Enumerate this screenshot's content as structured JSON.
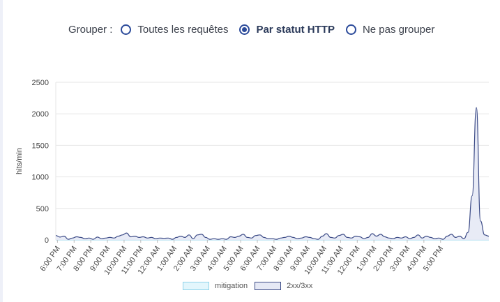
{
  "grouping": {
    "label": "Grouper :",
    "options": [
      {
        "label": "Toutes les requêtes",
        "selected": false
      },
      {
        "label": "Par statut HTTP",
        "selected": true
      },
      {
        "label": "Ne pas grouper",
        "selected": false
      }
    ],
    "accent_color": "#2b4a9a"
  },
  "legend": {
    "items": [
      {
        "label": "mitigation",
        "fill": "#e3f6fc",
        "stroke": "#8fd3ea"
      },
      {
        "label": "2xx/3xx",
        "fill": "#e6e9f5",
        "stroke": "#3b4a86"
      }
    ]
  },
  "chart_data": {
    "type": "area",
    "ylabel": "hits/min",
    "xlabel": "",
    "ylim": [
      0,
      2500
    ],
    "yticks": [
      0,
      500,
      1000,
      1500,
      2000,
      2500
    ],
    "grid": true,
    "legend_placement": "bottom",
    "xticks": [
      "6:00 PM",
      "7:00 PM",
      "8:00 PM",
      "9:00 PM",
      "10:00 PM",
      "11:00 PM",
      "12:00 AM",
      "1:00 AM",
      "2:00 AM",
      "3:00 AM",
      "4:00 AM",
      "5:00 AM",
      "6:00 AM",
      "7:00 AM",
      "8:00 AM",
      "9:00 AM",
      "10:00 AM",
      "11:00 AM",
      "12:00 PM",
      "1:00 PM",
      "2:00 PM",
      "3:00 PM",
      "4:00 PM",
      "5:00 PM"
    ],
    "x_start_hour": 17.9,
    "x_step_hours": 0.25,
    "series": [
      {
        "name": "mitigation",
        "values": []
      },
      {
        "name": "2xx/3xx",
        "values": [
          70,
          45,
          60,
          10,
          30,
          50,
          40,
          20,
          30,
          10,
          45,
          20,
          30,
          40,
          30,
          60,
          80,
          110,
          50,
          60,
          40,
          50,
          30,
          40,
          20,
          30,
          25,
          30,
          10,
          40,
          60,
          40,
          80,
          20,
          80,
          90,
          40,
          10,
          20,
          10,
          20,
          10,
          50,
          40,
          60,
          90,
          40,
          30,
          70,
          80,
          40,
          20,
          20,
          10,
          30,
          40,
          60,
          40,
          20,
          30,
          50,
          40,
          20,
          10,
          60,
          100,
          40,
          30,
          70,
          90,
          40,
          30,
          60,
          50,
          20,
          40,
          100,
          60,
          90,
          50,
          30,
          20,
          40,
          30,
          50,
          20,
          40,
          80,
          30,
          60,
          40,
          20,
          30,
          10,
          60,
          90,
          40,
          60,
          20,
          120,
          700,
          2100,
          300,
          80,
          60
        ]
      }
    ]
  }
}
